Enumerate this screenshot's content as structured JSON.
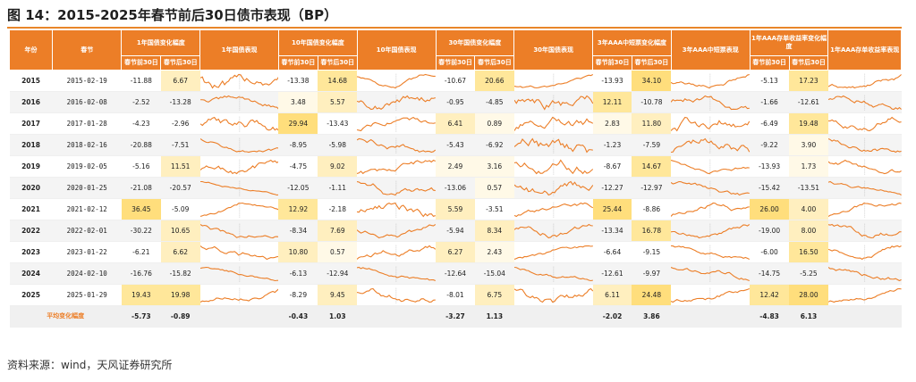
{
  "title": "图 14：2015-2025年春节前后30日债市表现（BP）",
  "source": "资料来源：wind，天风证券研究所",
  "table": {
    "col_year": "年份",
    "col_date": "春节",
    "groups": [
      {
        "change_header": "1年国债变化幅度",
        "chart_header": "1年国债表现"
      },
      {
        "change_header": "10年国债变化幅度",
        "chart_header": "10年国债表现"
      },
      {
        "change_header": "30年国债变化幅度",
        "chart_header": "30年国债表现"
      },
      {
        "change_header": "3年AAA中短票变化幅度",
        "chart_header": "3年AAA中短票表现"
      },
      {
        "change_header": "1年AAA存单收益率变化幅度",
        "chart_header": "1年AAA存单收益率表现"
      }
    ],
    "sub_before": "春节前30日",
    "sub_after": "春节后30日",
    "rows": [
      {
        "year": "2015",
        "date": "2015-02-19",
        "g": [
          [
            "-11.88",
            "6.67"
          ],
          [
            "-13.38",
            "14.68"
          ],
          [
            "-10.67",
            "20.66"
          ],
          [
            "-13.93",
            "34.10"
          ],
          [
            "-5.13",
            "17.23"
          ]
        ]
      },
      {
        "year": "2016",
        "date": "2016-02-08",
        "g": [
          [
            "-2.52",
            "-13.28"
          ],
          [
            "3.48",
            "5.57"
          ],
          [
            "-0.95",
            "-4.85"
          ],
          [
            "12.11",
            "-10.78"
          ],
          [
            "-1.66",
            "-12.61"
          ]
        ]
      },
      {
        "year": "2017",
        "date": "2017-01-28",
        "g": [
          [
            "-4.23",
            "-2.96"
          ],
          [
            "29.94",
            "-13.43"
          ],
          [
            "6.41",
            "0.89"
          ],
          [
            "2.83",
            "11.80"
          ],
          [
            "-6.49",
            "19.48"
          ]
        ]
      },
      {
        "year": "2018",
        "date": "2018-02-16",
        "g": [
          [
            "-20.88",
            "-7.51"
          ],
          [
            "-8.95",
            "-5.98"
          ],
          [
            "-5.43",
            "-6.92"
          ],
          [
            "-1.23",
            "-7.59"
          ],
          [
            "-9.22",
            "3.90"
          ]
        ]
      },
      {
        "year": "2019",
        "date": "2019-02-05",
        "g": [
          [
            "-5.16",
            "11.51"
          ],
          [
            "-4.75",
            "9.02"
          ],
          [
            "2.49",
            "3.16"
          ],
          [
            "-8.67",
            "14.67"
          ],
          [
            "-13.93",
            "1.73"
          ]
        ]
      },
      {
        "year": "2020",
        "date": "2020-01-25",
        "g": [
          [
            "-21.08",
            "-20.57"
          ],
          [
            "-12.05",
            "-1.11"
          ],
          [
            "-13.06",
            "0.57"
          ],
          [
            "-12.27",
            "-12.97"
          ],
          [
            "-15.42",
            "-13.51"
          ]
        ]
      },
      {
        "year": "2021",
        "date": "2021-02-12",
        "g": [
          [
            "36.45",
            "-5.09"
          ],
          [
            "12.92",
            "-2.18"
          ],
          [
            "5.59",
            "-3.51"
          ],
          [
            "25.44",
            "-8.86"
          ],
          [
            "26.00",
            "4.00"
          ]
        ]
      },
      {
        "year": "2022",
        "date": "2022-02-01",
        "g": [
          [
            "-30.22",
            "10.65"
          ],
          [
            "-8.34",
            "7.69"
          ],
          [
            "-5.94",
            "8.34"
          ],
          [
            "-13.34",
            "16.78"
          ],
          [
            "-19.00",
            "8.00"
          ]
        ]
      },
      {
        "year": "2023",
        "date": "2023-01-22",
        "g": [
          [
            "-6.21",
            "6.62"
          ],
          [
            "10.80",
            "0.57"
          ],
          [
            "6.27",
            "2.43"
          ],
          [
            "-6.64",
            "-9.15"
          ],
          [
            "-6.00",
            "16.50"
          ]
        ]
      },
      {
        "year": "2024",
        "date": "2024-02-10",
        "g": [
          [
            "-16.76",
            "-15.82"
          ],
          [
            "-6.13",
            "-12.94"
          ],
          [
            "-12.64",
            "-15.04"
          ],
          [
            "-12.61",
            "-9.97"
          ],
          [
            "-14.75",
            "-5.25"
          ]
        ]
      },
      {
        "year": "2025",
        "date": "2025-01-29",
        "g": [
          [
            "19.43",
            "19.98"
          ],
          [
            "-8.29",
            "9.45"
          ],
          [
            "-8.01",
            "6.75"
          ],
          [
            "6.11",
            "24.48"
          ],
          [
            "12.42",
            "28.00"
          ]
        ]
      }
    ],
    "avg_label": "平均变化幅度",
    "avg": [
      [
        "-5.73",
        "-0.89"
      ],
      [
        "-0.43",
        "1.03"
      ],
      [
        "-3.27",
        "1.13"
      ],
      [
        "-2.02",
        "3.86"
      ],
      [
        "-4.83",
        "6.13"
      ]
    ]
  },
  "colors": {
    "header": "#ec7e27",
    "highlight": "#ffe79a",
    "negative": "#3d6fc9",
    "positive": "#d97a12",
    "line": "#ec7e27"
  }
}
